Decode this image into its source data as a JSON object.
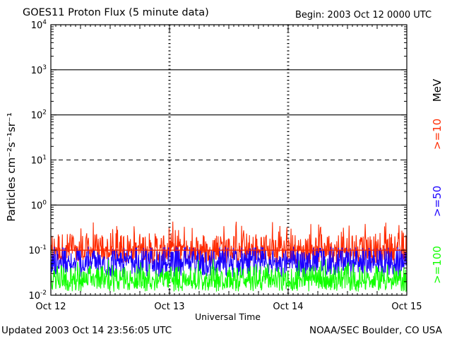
{
  "title": "GOES11 Proton Flux (5 minute data)",
  "begin": "Begin: 2003 Oct 12 0000 UTC",
  "updated": "Updated 2003 Oct 14 23:56:05 UTC",
  "credit": "NOAA/SEC Boulder, CO USA",
  "colors": {
    "gt10": "#ff2a00",
    "gt50": "#1a00ff",
    "gt100": "#10ff00",
    "axes": "#000000"
  },
  "chart_data": {
    "type": "line",
    "title": "GOES11 Proton Flux (5 minute data)",
    "xlabel": "Universal Time",
    "ylabel": "Particles cm⁻²s⁻¹sr⁻¹",
    "yscale": "log",
    "ylim": [
      0.01,
      10000
    ],
    "xlim": [
      0,
      3
    ],
    "x_tick_labels": [
      "Oct 12",
      "Oct 13",
      "Oct 14",
      "Oct 15"
    ],
    "y_tick_labels": [
      {
        "base": "10",
        "exp": "-2"
      },
      {
        "base": "10",
        "exp": "-1"
      },
      {
        "base": "10",
        "exp": "0"
      },
      {
        "base": "10",
        "exp": "1"
      },
      {
        "base": "10",
        "exp": "2"
      },
      {
        "base": "10",
        "exp": "3"
      },
      {
        "base": "10",
        "exp": "4"
      }
    ],
    "threshold_line": 10,
    "series": [
      {
        "name": ">=10",
        "unit_label": "MeV",
        "color": "#ff2a00",
        "typical": 0.12,
        "min": 0.05,
        "max": 0.45
      },
      {
        "name": ">=50",
        "color": "#1a00ff",
        "typical": 0.06,
        "min": 0.025,
        "max": 0.12
      },
      {
        "name": ">=100",
        "color": "#10ff00",
        "typical": 0.025,
        "min": 0.012,
        "max": 0.065
      }
    ],
    "legend_placement": "right (vertical)"
  }
}
